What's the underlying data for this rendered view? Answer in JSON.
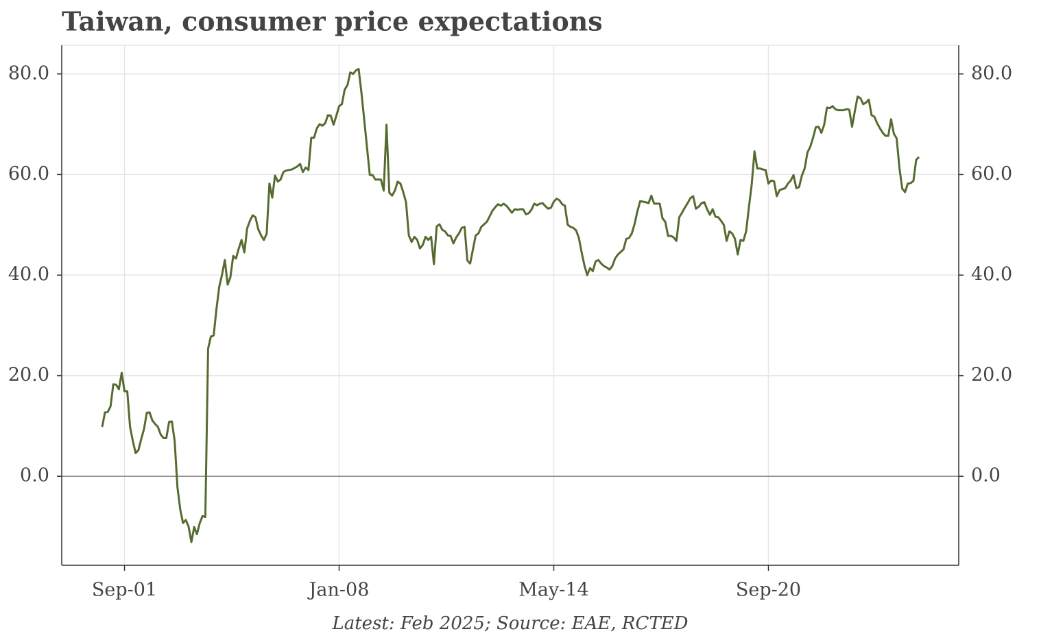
{
  "chart_data": {
    "type": "line",
    "title": "Taiwan, consumer price expectations",
    "note": "Latest: Feb 2025; Source: EAE, RCTED",
    "color": "#566b30",
    "grid": true,
    "ylim": [
      -17.7,
      85.7
    ],
    "yticks": [
      {
        "value": 0,
        "label": "0.0"
      },
      {
        "value": 20,
        "label": "20.0"
      },
      {
        "value": 40,
        "label": "40.0"
      },
      {
        "value": 60,
        "label": "60.0"
      },
      {
        "value": 80,
        "label": "80.0"
      }
    ],
    "x": [
      null,
      null,
      null,
      null,
      null,
      null,
      null,
      null,
      "Sep-01",
      null,
      null,
      null,
      null,
      null,
      null,
      null,
      null,
      null,
      null,
      null,
      null,
      null,
      null,
      null,
      null,
      null,
      null,
      null,
      null,
      null,
      null,
      null,
      null,
      null,
      null,
      null,
      null,
      null,
      null,
      null,
      null,
      null,
      null,
      null,
      null,
      null,
      null,
      null,
      null,
      null,
      null,
      null,
      null,
      null,
      null,
      null,
      null,
      null,
      null,
      null,
      null,
      null,
      null,
      null,
      null,
      null,
      null,
      null,
      null,
      null,
      null,
      null,
      null,
      null,
      null,
      null,
      null,
      null,
      null,
      null,
      null,
      null,
      null,
      null,
      null,
      "Jan-08",
      null,
      null,
      null,
      null,
      null,
      null,
      null,
      null,
      null,
      null,
      null,
      null,
      null,
      null,
      null,
      null,
      null,
      null,
      null,
      null,
      null,
      null,
      null,
      null,
      null,
      null,
      null,
      null,
      null,
      null,
      null,
      null,
      null,
      null,
      null,
      null,
      null,
      null,
      null,
      null,
      null,
      null,
      null,
      null,
      null,
      null,
      null,
      null,
      null,
      null,
      null,
      null,
      null,
      null,
      null,
      null,
      null,
      null,
      null,
      null,
      null,
      null,
      null,
      null,
      null,
      null,
      null,
      null,
      null,
      null,
      null,
      null,
      null,
      null,
      null,
      null,
      "May-14",
      null,
      null,
      null,
      null,
      null,
      null,
      null,
      null,
      null,
      null,
      null,
      null,
      null,
      null,
      null,
      null,
      null,
      null,
      null,
      null,
      null,
      null,
      null,
      null,
      null,
      null,
      null,
      null,
      null,
      null,
      null,
      null,
      null,
      null,
      null,
      null,
      null,
      null,
      null,
      null,
      null,
      null,
      null,
      null,
      null,
      null,
      null,
      null,
      null,
      null,
      null,
      null,
      null,
      null,
      null,
      null,
      null,
      null,
      null,
      null,
      null,
      null,
      null,
      null,
      null,
      null,
      null,
      null,
      null,
      null,
      null,
      null,
      null,
      null,
      null,
      null,
      "Sep-20",
      null,
      null,
      null,
      null,
      null,
      null,
      null,
      null,
      null,
      null,
      null,
      null,
      null,
      null,
      null,
      null,
      null,
      null,
      null,
      null,
      null,
      null,
      null,
      null,
      null,
      null,
      null,
      null,
      null,
      null,
      null,
      null,
      null,
      null,
      null,
      null,
      null,
      null,
      null,
      null,
      null,
      null,
      null,
      null,
      null,
      null,
      null,
      null,
      null,
      null,
      null,
      null,
      null,
      null
    ],
    "values": [
      9.8,
      12.7,
      12.8,
      13.9,
      18.3,
      18.2,
      17.3,
      20.6,
      16.9,
      16.9,
      9.8,
      7.0,
      4.6,
      5.2,
      7.4,
      9.4,
      12.6,
      12.7,
      11.1,
      10.4,
      9.8,
      8.3,
      7.6,
      7.6,
      10.8,
      10.9,
      7.0,
      -2.2,
      -6.6,
      -9.3,
      -8.7,
      -10.0,
      -13.1,
      -10.1,
      -11.5,
      -9.3,
      -7.9,
      -8.1,
      25.4,
      27.8,
      28.0,
      33.3,
      37.7,
      40.1,
      43.0,
      38.1,
      39.6,
      43.8,
      43.3,
      45.3,
      47.0,
      44.5,
      49.3,
      50.8,
      51.9,
      51.5,
      49.1,
      47.9,
      47.0,
      48.2,
      58.2,
      55.4,
      59.8,
      58.6,
      59.0,
      60.5,
      60.8,
      60.9,
      61.0,
      61.3,
      61.6,
      62.1,
      60.5,
      61.4,
      60.9,
      67.3,
      67.3,
      69.2,
      70.0,
      69.7,
      70.2,
      71.8,
      71.7,
      69.9,
      71.7,
      73.6,
      74.0,
      76.9,
      77.8,
      80.3,
      80.0,
      80.7,
      81.0,
      76.3,
      70.9,
      65.4,
      59.9,
      59.9,
      59.0,
      59.0,
      59.0,
      56.8,
      69.9,
      56.4,
      55.8,
      56.8,
      58.6,
      58.2,
      56.5,
      54.5,
      47.9,
      46.6,
      47.6,
      47.0,
      45.3,
      46.0,
      47.6,
      47.0,
      47.6,
      42.2,
      49.7,
      50.1,
      49.0,
      48.7,
      47.9,
      47.8,
      46.3,
      47.5,
      48.3,
      49.4,
      49.6,
      42.9,
      42.3,
      45.1,
      47.9,
      48.3,
      49.6,
      50.1,
      50.6,
      51.7,
      52.8,
      53.5,
      54.1,
      53.8,
      54.2,
      53.8,
      53.1,
      52.4,
      53.1,
      53.0,
      53.1,
      53.1,
      52.1,
      52.3,
      53.0,
      54.2,
      53.9,
      54.2,
      54.3,
      53.7,
      53.2,
      53.4,
      54.6,
      55.2,
      54.9,
      54.1,
      53.8,
      50.0,
      49.6,
      49.4,
      48.9,
      47.4,
      44.5,
      41.9,
      40.0,
      41.4,
      40.8,
      42.7,
      43.0,
      42.3,
      41.8,
      41.5,
      41.1,
      41.8,
      43.3,
      44.1,
      44.6,
      45.1,
      47.2,
      47.4,
      48.3,
      50.2,
      52.7,
      54.7,
      54.6,
      54.5,
      54.3,
      55.8,
      54.2,
      54.2,
      54.2,
      51.3,
      50.6,
      47.8,
      47.8,
      47.5,
      46.8,
      51.5,
      52.4,
      53.4,
      54.3,
      55.3,
      55.7,
      53.2,
      53.6,
      54.3,
      54.5,
      53.1,
      52.0,
      53.1,
      51.6,
      51.5,
      50.8,
      50.0,
      46.8,
      48.7,
      48.3,
      47.2,
      44.1,
      47.0,
      46.8,
      48.7,
      53.5,
      58.0,
      64.6,
      61.2,
      61.2,
      61.0,
      60.9,
      58.2,
      58.8,
      58.7,
      55.7,
      56.9,
      57.1,
      57.3,
      58.2,
      58.8,
      59.9,
      57.3,
      57.5,
      59.8,
      61.2,
      64.4,
      65.5,
      67.3,
      69.4,
      69.5,
      68.3,
      69.9,
      73.3,
      73.2,
      73.6,
      73.0,
      72.8,
      72.8,
      72.8,
      73.0,
      72.9,
      69.5,
      72.6,
      75.5,
      75.2,
      74.0,
      74.3,
      74.9,
      71.8,
      71.5,
      70.2,
      69.2,
      68.3,
      67.7,
      67.7,
      71.0,
      68.1,
      67.2,
      61.3,
      57.2,
      56.5,
      58.2,
      58.3,
      58.7,
      62.9,
      63.5
    ]
  }
}
